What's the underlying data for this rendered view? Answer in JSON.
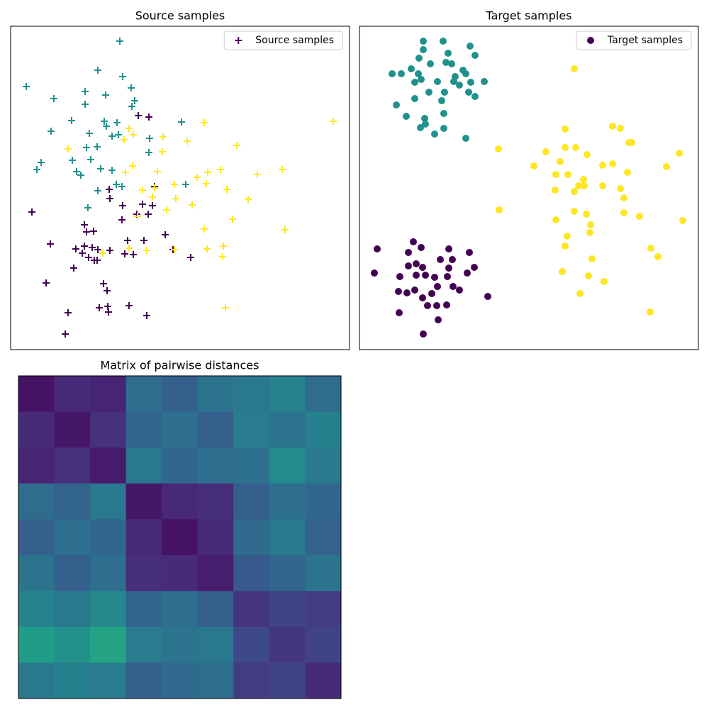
{
  "chart_data": [
    {
      "type": "scatter",
      "title": "Source  samples",
      "xlim": [
        15,
        493
      ],
      "ylim": [
        7,
        463
      ],
      "legend": "upper right",
      "marker": "+",
      "series": [
        {
          "name": "Source samples",
          "color": "#440154",
          "x": [
            195,
            210,
            154,
            155,
            218,
            173,
            201,
            209,
            193,
            215,
            45,
            172,
            119,
            122,
            132,
            71,
            180,
            203,
            233,
            107,
            119,
            130,
            138,
            116,
            125,
            133,
            137,
            155,
            176,
            188,
            244,
            269,
            104,
            65,
            146,
            151,
            140,
            152,
            182,
            153,
            96,
            207,
            92
          ],
          "values": [
            337,
            335,
            233,
            220,
            237,
            210,
            212,
            198,
            198,
            210,
            201,
            190,
            183,
            173,
            174,
            156,
            161,
            161,
            169,
            149,
            153,
            151,
            148,
            143,
            137,
            133,
            133,
            147,
            142,
            141,
            148,
            137,
            122,
            101,
            100,
            90,
            66,
            68,
            69,
            60,
            59,
            55,
            29
          ]
        },
        {
          "color": "#21918c",
          "x": [
            169,
            138,
            173,
            37,
            120,
            185,
            76,
            149,
            120,
            190,
            101,
            147,
            150,
            72,
            158,
            165,
            167,
            126,
            122,
            137,
            102,
            128,
            58,
            52,
            108,
            114,
            142,
            158,
            164,
            172,
            211,
            256,
            138,
            124,
            210,
            262,
            186
          ],
          "values": [
            442,
            401,
            392,
            378,
            371,
            376,
            361,
            366,
            353,
            358,
            330,
            329,
            322,
            315,
            308,
            327,
            310,
            312,
            292,
            293,
            274,
            275,
            271,
            261,
            258,
            253,
            262,
            260,
            240,
            237,
            305,
            328,
            231,
            207,
            285,
            240,
            350
          ]
        },
        {
          "color": "#fde725",
          "x": [
            470,
            288,
            182,
            188,
            230,
            264,
            334,
            96,
            175,
            229,
            311,
            293,
            398,
            363,
            177,
            187,
            222,
            278,
            246,
            291,
            320,
            201,
            218,
            215,
            248,
            271,
            350,
            235,
            328,
            288,
            402,
            182,
            207,
            246,
            292,
            315,
            145,
            314,
            318,
            194
          ],
          "values": [
            329,
            327,
            319,
            310,
            307,
            301,
            295,
            290,
            303,
            286,
            261,
            257,
            261,
            254,
            257,
            266,
            258,
            250,
            240,
            241,
            233,
            232,
            235,
            222,
            220,
            211,
            219,
            204,
            191,
            177,
            176,
            150,
            147,
            148,
            149,
            153,
            143,
            138,
            66,
            195
          ]
        }
      ]
    },
    {
      "type": "scatter",
      "title": "Target samples",
      "xlim": [
        507,
        985
      ],
      "ylim": [
        7,
        463
      ],
      "legend": "upper right",
      "marker": "o",
      "series": [
        {
          "name": "Target samples",
          "color": "#440154",
          "x": [
            532,
            583,
            594,
            576,
            633,
            662,
            587,
            596,
            621,
            638,
            633,
            659,
            669,
            564,
            528,
            587,
            600,
            613,
            631,
            617,
            639,
            562,
            574,
            585,
            609,
            596,
            648,
            688,
            603,
            616,
            630,
            563,
            618,
            597,
            576
          ],
          "values": [
            149,
            159,
            151,
            144,
            149,
            144,
            128,
            123,
            134,
            134,
            122,
            115,
            123,
            110,
            115,
            112,
            112,
            109,
            110,
            96,
            96,
            89,
            87,
            91,
            86,
            80,
            91,
            82,
            69,
            69,
            70,
            59,
            49,
            29,
            125
          ]
        },
        {
          "color": "#21918c",
          "x": [
            597,
            625,
            597,
            632,
            663,
            670,
            591,
            629,
            607,
            637,
            553,
            566,
            580,
            590,
            594,
            653,
            683,
            642,
            657,
            617,
            640,
            664,
            648,
            661,
            670,
            605,
            627,
            559,
            585,
            623,
            573,
            599,
            600,
            593,
            626,
            613,
            626,
            657,
            585
          ],
          "values": [
            442,
            442,
            430,
            425,
            435,
            422,
            418,
            412,
            410,
            410,
            396,
            396,
            403,
            396,
            388,
            401,
            385,
            392,
            396,
            385,
            385,
            384,
            380,
            370,
            364,
            370,
            370,
            352,
            361,
            358,
            336,
            333,
            325,
            320,
            340,
            311,
            319,
            305,
            384
          ]
        },
        {
          "color": "#fde725",
          "x": [
            810,
            797,
            864,
            875,
            887,
            891,
            703,
            770,
            797,
            812,
            828,
            958,
            753,
            790,
            864,
            850,
            885,
            940,
            784,
            801,
            823,
            816,
            824,
            850,
            875,
            810,
            783,
            880,
            704,
            810,
            827,
            784,
            880,
            902,
            963,
            833,
            832,
            800,
            918,
            797,
            928,
            835,
            793,
            830,
            852,
            818,
            917
          ],
          "values": [
            403,
            318,
            322,
            319,
            299,
            299,
            290,
            286,
            292,
            292,
            282,
            284,
            266,
            272,
            269,
            267,
            257,
            265,
            254,
            254,
            247,
            238,
            238,
            238,
            234,
            230,
            232,
            221,
            204,
            202,
            198,
            190,
            200,
            195,
            189,
            183,
            172,
            167,
            150,
            153,
            138,
            135,
            117,
            111,
            103,
            86,
            60
          ]
        }
      ]
    },
    {
      "type": "heatmap",
      "title": "Matrix of pairwise distances",
      "cmap": "viridis",
      "vlim": [
        0,
        1
      ],
      "matrix": [
        [
          0.05,
          0.12,
          0.1,
          0.35,
          0.3,
          0.38,
          0.4,
          0.45,
          0.35
        ],
        [
          0.12,
          0.06,
          0.14,
          0.32,
          0.36,
          0.3,
          0.42,
          0.38,
          0.44
        ],
        [
          0.1,
          0.14,
          0.07,
          0.4,
          0.33,
          0.36,
          0.37,
          0.48,
          0.41
        ],
        [
          0.35,
          0.32,
          0.4,
          0.06,
          0.11,
          0.13,
          0.3,
          0.36,
          0.33
        ],
        [
          0.3,
          0.36,
          0.33,
          0.11,
          0.05,
          0.12,
          0.34,
          0.4,
          0.31
        ],
        [
          0.38,
          0.3,
          0.36,
          0.13,
          0.12,
          0.08,
          0.28,
          0.33,
          0.38
        ],
        [
          0.45,
          0.4,
          0.47,
          0.32,
          0.36,
          0.3,
          0.15,
          0.2,
          0.18
        ],
        [
          0.55,
          0.5,
          0.58,
          0.42,
          0.38,
          0.4,
          0.22,
          0.16,
          0.2
        ],
        [
          0.4,
          0.44,
          0.42,
          0.3,
          0.34,
          0.36,
          0.18,
          0.2,
          0.12
        ]
      ]
    }
  ]
}
